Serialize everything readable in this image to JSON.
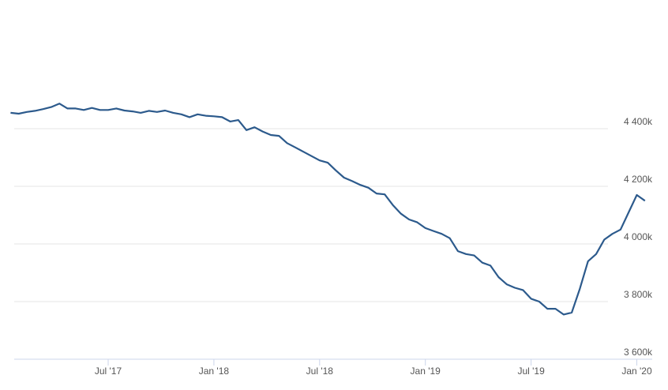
{
  "chart_data": {
    "type": "line",
    "categories": [
      null,
      null,
      null,
      null,
      null,
      null,
      null,
      null,
      null,
      null,
      null,
      null,
      "Jul '17",
      null,
      null,
      null,
      null,
      null,
      null,
      null,
      null,
      null,
      null,
      null,
      null,
      "Jan '18",
      null,
      null,
      null,
      null,
      null,
      null,
      null,
      null,
      null,
      null,
      null,
      null,
      "Jul '18",
      null,
      null,
      null,
      null,
      null,
      null,
      null,
      null,
      null,
      null,
      null,
      null,
      "Jan '19",
      null,
      null,
      null,
      null,
      null,
      null,
      null,
      null,
      null,
      null,
      null,
      null,
      "Jul '19",
      null,
      null,
      null,
      null,
      null,
      null,
      null,
      null,
      null,
      null,
      null,
      null,
      "Jan '20",
      null
    ],
    "series": [
      {
        "color": "#2c5a8c",
        "values": [
          4455,
          4452,
          4458,
          4462,
          4468,
          4475,
          4487,
          4470,
          4470,
          4465,
          4472,
          4465,
          4465,
          4470,
          4463,
          4460,
          4455,
          4462,
          4458,
          4463,
          4455,
          4450,
          4440,
          4450,
          4445,
          4443,
          4440,
          4425,
          4430,
          4395,
          4405,
          4390,
          4378,
          4375,
          4350,
          4335,
          4320,
          4305,
          4290,
          4282,
          4255,
          4230,
          4218,
          4205,
          4195,
          4175,
          4172,
          4135,
          4105,
          4085,
          4075,
          4055,
          4045,
          4035,
          4020,
          3975,
          3965,
          3960,
          3935,
          3925,
          3885,
          3860,
          3848,
          3840,
          3810,
          3800,
          3775,
          3775,
          3755,
          3762,
          3845,
          3940,
          3965,
          4015,
          4035,
          4050,
          4110,
          4170,
          4150
        ]
      }
    ],
    "ylim": [
      3600,
      4800
    ],
    "yticks": [
      {
        "value": 3600,
        "label": "3 600k"
      },
      {
        "value": 3800,
        "label": "3 800k"
      },
      {
        "value": 4000,
        "label": "4 000k"
      },
      {
        "value": 4200,
        "label": "4 200k"
      },
      {
        "value": 4400,
        "label": "4 400k"
      }
    ],
    "grid": true
  }
}
